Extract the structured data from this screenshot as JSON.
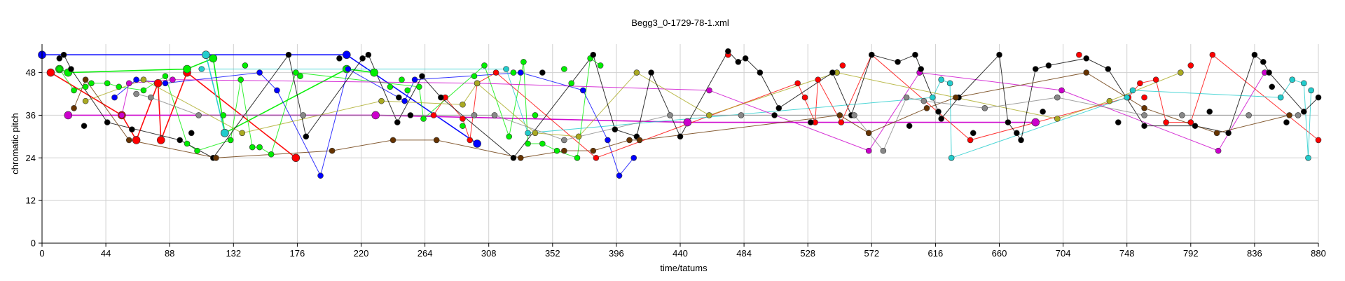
{
  "chart_data": {
    "type": "scatter",
    "title": "Begg3_0-1729-78-1.xml",
    "xlabel": "time/tatums",
    "ylabel": "chromatic pitch",
    "xlim": [
      0,
      880
    ],
    "ylim": [
      0,
      56
    ],
    "xticks": [
      0,
      44,
      88,
      132,
      176,
      220,
      264,
      308,
      352,
      396,
      440,
      484,
      528,
      572,
      616,
      660,
      704,
      748,
      792,
      836,
      880
    ],
    "yticks": [
      0,
      12,
      24,
      36,
      48
    ],
    "grid": true,
    "legend": "none",
    "series": [
      {
        "color": "#0000ff",
        "marker_size": "large",
        "x": [
          0,
          210,
          300
        ],
        "y": [
          53,
          53,
          28
        ]
      },
      {
        "color": "#ff0000",
        "marker_size": "large",
        "x": [
          6,
          55,
          65,
          80,
          82,
          100,
          175
        ],
        "y": [
          48,
          36,
          29,
          45,
          29,
          48,
          24
        ]
      },
      {
        "color": "#00ee00",
        "marker_size": "large",
        "x": [
          12,
          18,
          100,
          118,
          126,
          210,
          229
        ],
        "y": [
          49,
          48,
          49,
          52,
          31,
          49,
          48
        ]
      },
      {
        "color": "#22cccc",
        "marker_size": "large",
        "x": [
          113,
          126
        ],
        "y": [
          53,
          31
        ]
      },
      {
        "color": "#cc00cc",
        "marker_size": "large",
        "x": [
          18,
          230,
          445,
          685
        ],
        "y": [
          36,
          36,
          34,
          34
        ]
      },
      {
        "color": "#0000ff",
        "x": [
          50,
          65,
          85,
          150,
          162,
          192,
          211,
          250,
          257,
          330,
          373,
          390,
          398,
          408
        ],
        "y": [
          41,
          46,
          45,
          48,
          43,
          19,
          49,
          40,
          46,
          48,
          43,
          29,
          19,
          24
        ]
      },
      {
        "color": "#ff0000",
        "x": [
          270,
          278,
          290,
          295,
          300,
          313,
          382,
          521,
          533,
          535,
          551,
          572,
          640,
          749,
          757,
          768,
          775,
          792,
          807,
          880
        ],
        "y": [
          36,
          41,
          35,
          29,
          45,
          48,
          24,
          45,
          34,
          46,
          34,
          53,
          29,
          41,
          45,
          46,
          34,
          34,
          53,
          29
        ],
        "extra_points": [
          [
            473,
            53
          ],
          [
            526,
            41
          ],
          [
            552,
            50
          ],
          [
            715,
            53
          ],
          [
            760,
            41
          ],
          [
            792,
            50
          ]
        ]
      },
      {
        "color": "#00ee00",
        "x": [
          12,
          22,
          30,
          34,
          45,
          53,
          70,
          85,
          100,
          107,
          130,
          137,
          145,
          150,
          158,
          175,
          260,
          263,
          305,
          322,
          332,
          335,
          345,
          355,
          369,
          378,
          385
        ],
        "y": [
          49,
          43,
          44,
          45,
          45,
          44,
          43,
          47,
          28,
          26,
          29,
          46,
          27,
          27,
          25,
          48,
          44,
          35,
          50,
          30,
          51,
          28,
          28,
          26,
          24,
          52,
          50
        ],
        "extra_points": [
          [
            125,
            36
          ],
          [
            140,
            50
          ],
          [
            178,
            47
          ],
          [
            240,
            44
          ],
          [
            248,
            46
          ],
          [
            252,
            43
          ],
          [
            290,
            33
          ],
          [
            298,
            47
          ],
          [
            325,
            48
          ],
          [
            340,
            36
          ],
          [
            360,
            49
          ],
          [
            365,
            45
          ]
        ]
      },
      {
        "color": "#22cccc",
        "x": [
          110,
          320,
          335,
          614,
          620,
          626,
          627,
          748,
          752,
          854,
          862,
          870,
          873,
          875
        ],
        "y": [
          49,
          49,
          31,
          41,
          46,
          45,
          24,
          41,
          43,
          41,
          46,
          45,
          24,
          43
        ]
      },
      {
        "color": "#cc00cc",
        "x": [
          55,
          60,
          90,
          300,
          460,
          570,
          605,
          703,
          811,
          843
        ],
        "y": [
          36,
          45,
          46,
          45,
          43,
          26,
          48,
          43,
          26,
          48
        ]
      },
      {
        "color": "#aaaa22",
        "x": [
          30,
          70,
          138,
          234,
          290,
          300,
          340,
          370,
          410,
          460,
          548,
          700,
          736,
          785
        ],
        "y": [
          40,
          46,
          31,
          40,
          39,
          45,
          31,
          30,
          48,
          36,
          48,
          35,
          40,
          48
        ]
      },
      {
        "color": "#000000",
        "x": [
          12,
          15,
          20,
          45,
          95,
          118,
          170,
          182,
          221,
          225,
          245,
          262,
          275,
          325,
          380,
          395,
          410,
          420,
          440,
          473,
          480,
          485,
          495,
          508,
          545,
          558,
          572,
          590,
          602,
          606,
          618,
          620,
          632,
          660,
          666,
          675,
          685,
          694,
          720,
          735,
          760,
          795,
          818,
          836,
          842,
          846,
          870,
          880
        ],
        "y": [
          52,
          53,
          49,
          34,
          29,
          24,
          53,
          30,
          52,
          53,
          34,
          47,
          41,
          24,
          53,
          32,
          30,
          48,
          30,
          54,
          51,
          52,
          48,
          38,
          48,
          36,
          53,
          51,
          53,
          49,
          37,
          35,
          41,
          53,
          34,
          29,
          49,
          50,
          52,
          49,
          33,
          33,
          31,
          53,
          51,
          48,
          37,
          41
        ],
        "extra_points": [
          [
            29,
            33
          ],
          [
            62,
            32
          ],
          [
            103,
            31
          ],
          [
            205,
            52
          ],
          [
            246,
            41
          ],
          [
            254,
            36
          ],
          [
            345,
            48
          ],
          [
            505,
            36
          ],
          [
            530,
            34
          ],
          [
            598,
            33
          ],
          [
            642,
            31
          ],
          [
            672,
            31
          ],
          [
            690,
            37
          ],
          [
            742,
            34
          ],
          [
            805,
            37
          ],
          [
            848,
            44
          ],
          [
            858,
            34
          ]
        ]
      },
      {
        "color": "#663300",
        "x": [
          22,
          30,
          60,
          120,
          200,
          242,
          272,
          330,
          360,
          380,
          405,
          412,
          550,
          570,
          610,
          630,
          720,
          760,
          810,
          860
        ],
        "y": [
          38,
          46,
          29,
          24,
          26,
          29,
          29,
          24,
          26,
          26,
          29,
          29,
          36,
          31,
          38,
          41,
          48,
          38,
          31,
          36
        ]
      },
      {
        "color": "#888888",
        "x": [
          65,
          75,
          108,
          180,
          298,
          312,
          360,
          433,
          482,
          560,
          580,
          596,
          608,
          650,
          700,
          760,
          786,
          832,
          866
        ],
        "y": [
          42,
          41,
          36,
          36,
          36,
          36,
          29,
          36,
          36,
          36,
          26,
          41,
          40,
          38,
          41,
          36,
          36,
          36,
          36
        ]
      }
    ]
  }
}
